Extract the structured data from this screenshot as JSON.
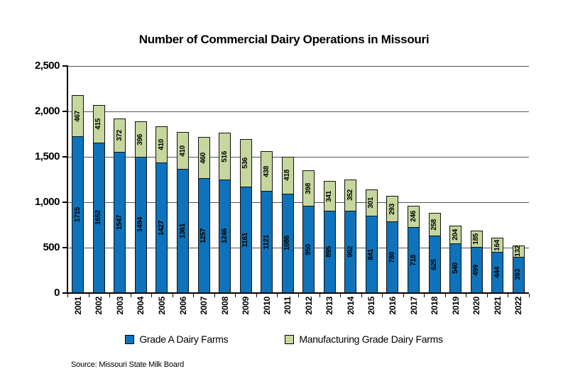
{
  "source": "Source: Missouri State Milk Board",
  "colors": {
    "grade_a_blue": "#0e73ba",
    "manufacturing_green": "#c6d79e",
    "bar_border": "#121212",
    "gridline": "#555555",
    "axis": "#000000",
    "background": "#ffffff"
  },
  "chart_data": {
    "type": "bar",
    "stacked": true,
    "title": "Number of Commercial Dairy Operations in Missouri",
    "categories": [
      "2001",
      "2002",
      "2003",
      "2004",
      "2005",
      "2006",
      "2007",
      "2008",
      "2009",
      "2010",
      "2011",
      "2012",
      "2013",
      "2014",
      "2015",
      "2016",
      "2017",
      "2018",
      "2019",
      "2020",
      "2021",
      "2022"
    ],
    "series": [
      {
        "name": "Grade A Dairy Farms",
        "color": "#0e73ba",
        "values": [
          1715,
          1652,
          1547,
          1494,
          1427,
          1361,
          1257,
          1246,
          1161,
          1121,
          1086,
          950,
          895,
          902,
          841,
          780,
          718,
          625,
          540,
          499,
          444,
          393
        ]
      },
      {
        "name": "Manufacturing Grade Dairy Farms",
        "color": "#c6d79e",
        "values": [
          467,
          415,
          372,
          396,
          410,
          410,
          460,
          516,
          536,
          438,
          418,
          398,
          341,
          352,
          301,
          293,
          246,
          258,
          204,
          185,
          164,
          132
        ]
      }
    ],
    "xlabel": "",
    "ylabel": "",
    "ylim": [
      0,
      2500
    ],
    "yticks": [
      0,
      500,
      1000,
      1500,
      2000,
      2500
    ],
    "ytick_labels": [
      "0",
      "500",
      "1,000",
      "1,500",
      "2,000",
      "2,500"
    ],
    "grid": true,
    "bar_value_labels": "rotated-90-inside-segments",
    "legend_position": "bottom"
  }
}
